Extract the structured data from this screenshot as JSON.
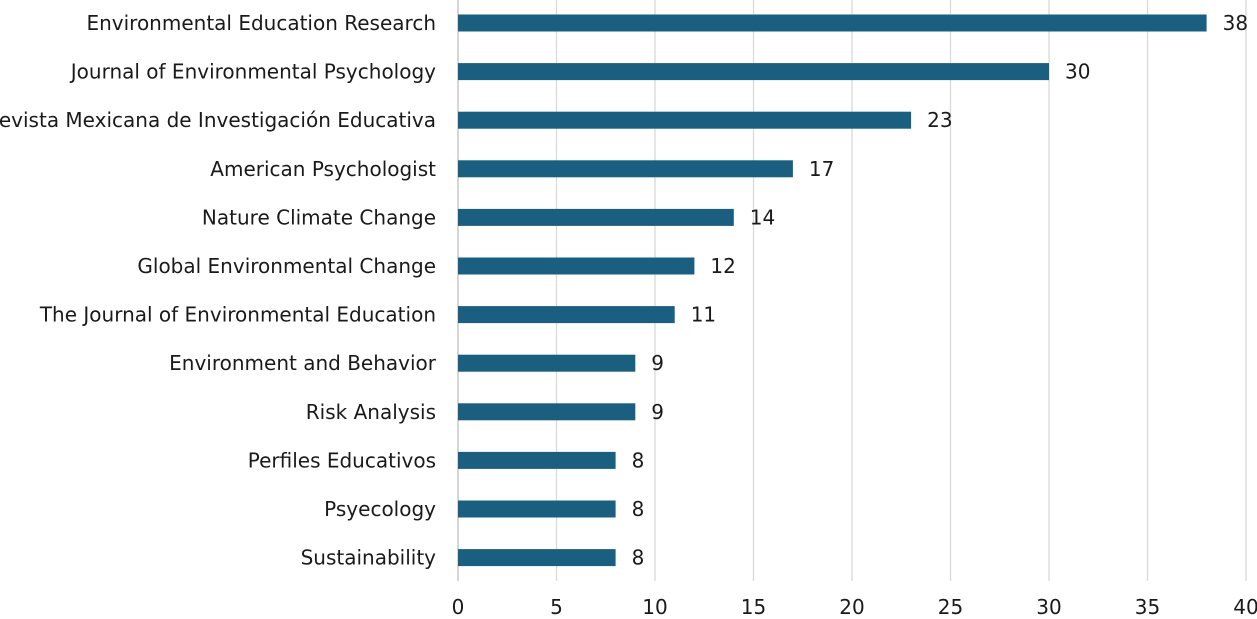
{
  "chart_data": {
    "type": "bar",
    "orientation": "horizontal",
    "title": "",
    "xlabel": "",
    "ylabel": "",
    "categories": [
      "Environmental Education Research",
      "Journal of Environmental Psychology",
      "Revista Mexicana de Investigación Educativa",
      "American Psychologist",
      "Nature Climate Change",
      "Global Environmental Change",
      "The Journal of Environmental Education",
      "Environment and Behavior",
      "Risk Analysis",
      "Perfiles Educativos",
      "Psyecology",
      "Sustainability"
    ],
    "values": [
      38,
      30,
      23,
      17,
      14,
      12,
      11,
      9,
      9,
      8,
      8,
      8
    ],
    "xlim": [
      0,
      40
    ],
    "xticks": [
      0,
      5,
      10,
      15,
      20,
      25,
      30,
      35,
      40
    ],
    "grid": true,
    "legend": "none",
    "bar_color": "#1a5f80"
  }
}
